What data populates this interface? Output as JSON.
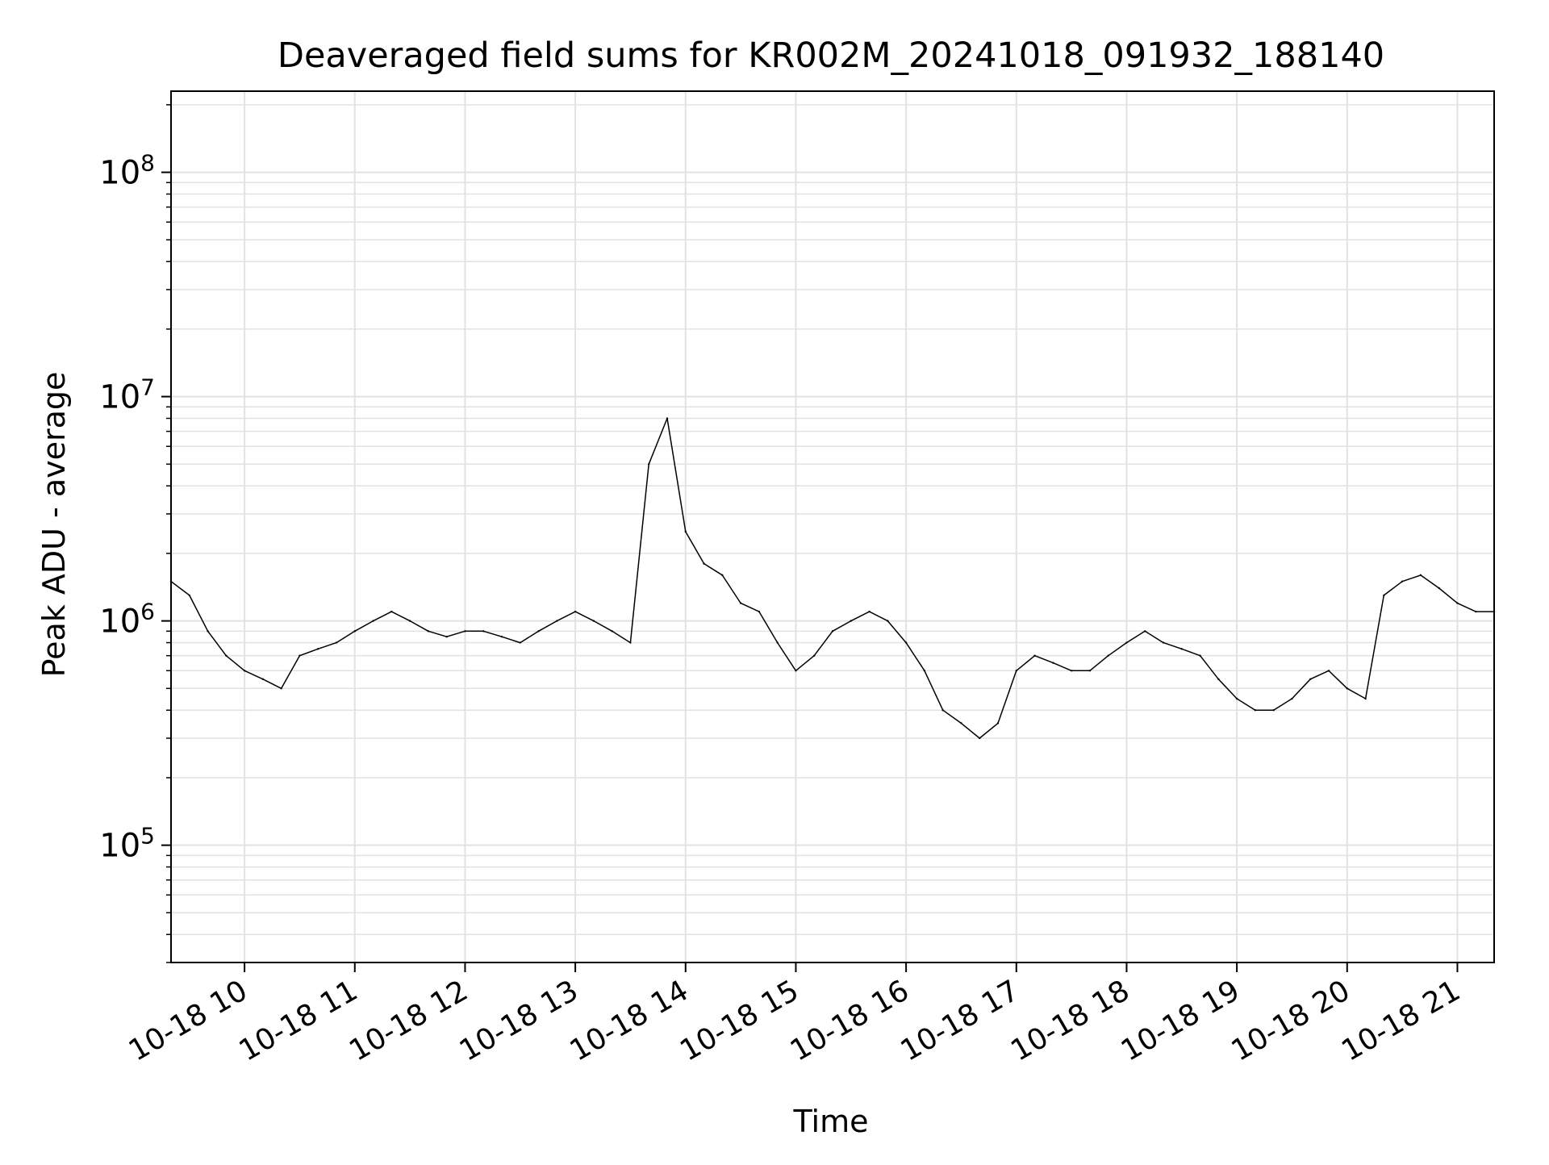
{
  "chart_data": {
    "type": "line",
    "title": "Deaveraged field sums for KR002M_20241018_091932_188140",
    "xlabel": "Time",
    "ylabel": "Peak ADU - average",
    "yscale": "log",
    "ylim": [
      30000,
      230000000
    ],
    "xlim": [
      "2024-10-18 09:20",
      "2024-10-18 21:20"
    ],
    "grid": true,
    "x_tick_labels": [
      "10-18 10",
      "10-18 11",
      "10-18 12",
      "10-18 13",
      "10-18 14",
      "10-18 15",
      "10-18 16",
      "10-18 17",
      "10-18 18",
      "10-18 19",
      "10-18 20",
      "10-18 21"
    ],
    "y_tick_labels": [
      {
        "base": "10",
        "exp": "5"
      },
      {
        "base": "10",
        "exp": "6"
      },
      {
        "base": "10",
        "exp": "7"
      },
      {
        "base": "10",
        "exp": "8"
      }
    ],
    "series": [
      {
        "color": "#000000",
        "x": [
          "2024-10-18 09:20",
          "2024-10-18 09:30",
          "2024-10-18 09:40",
          "2024-10-18 09:50",
          "2024-10-18 10:00",
          "2024-10-18 10:10",
          "2024-10-18 10:20",
          "2024-10-18 10:30",
          "2024-10-18 10:40",
          "2024-10-18 10:50",
          "2024-10-18 11:00",
          "2024-10-18 11:10",
          "2024-10-18 11:20",
          "2024-10-18 11:30",
          "2024-10-18 11:40",
          "2024-10-18 11:50",
          "2024-10-18 12:00",
          "2024-10-18 12:10",
          "2024-10-18 12:20",
          "2024-10-18 12:30",
          "2024-10-18 12:40",
          "2024-10-18 12:50",
          "2024-10-18 13:00",
          "2024-10-18 13:10",
          "2024-10-18 13:20",
          "2024-10-18 13:30",
          "2024-10-18 13:40",
          "2024-10-18 13:50",
          "2024-10-18 14:00",
          "2024-10-18 14:10",
          "2024-10-18 14:20",
          "2024-10-18 14:30",
          "2024-10-18 14:40",
          "2024-10-18 14:50",
          "2024-10-18 15:00",
          "2024-10-18 15:10",
          "2024-10-18 15:20",
          "2024-10-18 15:30",
          "2024-10-18 15:40",
          "2024-10-18 15:50",
          "2024-10-18 16:00",
          "2024-10-18 16:10",
          "2024-10-18 16:20",
          "2024-10-18 16:30",
          "2024-10-18 16:40",
          "2024-10-18 16:50",
          "2024-10-18 17:00",
          "2024-10-18 17:10",
          "2024-10-18 17:20",
          "2024-10-18 17:30",
          "2024-10-18 17:40",
          "2024-10-18 17:50",
          "2024-10-18 18:00",
          "2024-10-18 18:10",
          "2024-10-18 18:20",
          "2024-10-18 18:30",
          "2024-10-18 18:40",
          "2024-10-18 18:50",
          "2024-10-18 19:00",
          "2024-10-18 19:10",
          "2024-10-18 19:20",
          "2024-10-18 19:30",
          "2024-10-18 19:40",
          "2024-10-18 19:50",
          "2024-10-18 20:00",
          "2024-10-18 20:10",
          "2024-10-18 20:20",
          "2024-10-18 20:30",
          "2024-10-18 20:40",
          "2024-10-18 20:50",
          "2024-10-18 21:00",
          "2024-10-18 21:10",
          "2024-10-18 21:20"
        ],
        "y": [
          1500000,
          1300000,
          900000,
          700000,
          600000,
          550000,
          500000,
          700000,
          750000,
          800000,
          900000,
          1000000,
          1100000,
          1000000,
          900000,
          850000,
          900000,
          900000,
          850000,
          800000,
          900000,
          1000000,
          1100000,
          1000000,
          900000,
          800000,
          5000000,
          8000000,
          2500000,
          1800000,
          1600000,
          1200000,
          1100000,
          800000,
          600000,
          700000,
          900000,
          1000000,
          1100000,
          1000000,
          800000,
          600000,
          400000,
          350000,
          300000,
          350000,
          600000,
          700000,
          650000,
          600000,
          600000,
          700000,
          800000,
          900000,
          800000,
          750000,
          700000,
          550000,
          450000,
          400000,
          400000,
          450000,
          550000,
          600000,
          500000,
          450000,
          1300000,
          1500000,
          1600000,
          1400000,
          1200000,
          1100000,
          1100000
        ]
      }
    ]
  }
}
